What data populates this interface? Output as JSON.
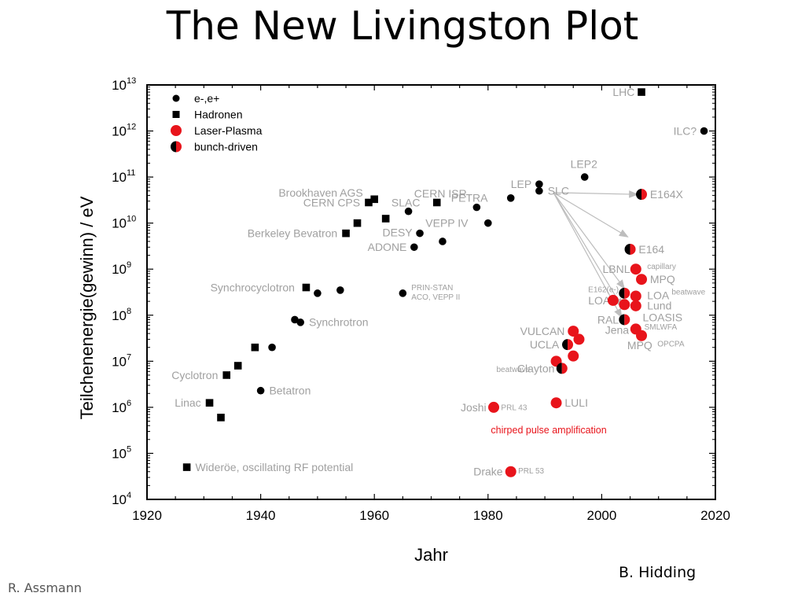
{
  "slide": {
    "title": "The New Livingston Plot",
    "credit_right": "B. Hidding",
    "credit_left": "R. Assmann"
  },
  "colors": {
    "axis": "#000000",
    "annotation_gray": "#a0a0a0",
    "laser_plasma": "#e8141b",
    "black_marker": "#000000",
    "arrow": "#bdbdbd",
    "cpa_text": "#e8141b"
  },
  "chart_data": {
    "type": "scatter",
    "xlabel": "Jahr",
    "ylabel": "Teilchenenergie(gewinn) / eV",
    "xlim": [
      1920,
      2020
    ],
    "ylim_log10": [
      4,
      13
    ],
    "yscale": "log",
    "x_ticks": [
      "1920",
      "1940",
      "1960",
      "1980",
      "2000",
      "2020"
    ],
    "y_tick_exponents": [
      "4",
      "5",
      "6",
      "7",
      "8",
      "9",
      "10",
      "11",
      "12",
      "13"
    ],
    "y_tick_base": "10",
    "legend": {
      "placement": "top-left",
      "entries": [
        {
          "label": "e-,e+",
          "marker": "circle"
        },
        {
          "label": "Hadronen",
          "marker": "square"
        },
        {
          "label": "Laser-Plasma",
          "marker": "red-circle"
        },
        {
          "label": "bunch-driven",
          "marker": "half-circle"
        }
      ]
    },
    "series": [
      {
        "name": "e-,e+",
        "marker": "circle",
        "points": [
          [
            1940,
            2300000.0
          ],
          [
            1942,
            20000000.0
          ],
          [
            1946,
            80000000.0
          ],
          [
            1947,
            70000000.0
          ],
          [
            1950,
            300000000.0
          ],
          [
            1954,
            350000000.0
          ],
          [
            1965,
            300000000.0
          ],
          [
            1966,
            18000000000.0
          ],
          [
            1967,
            3000000000.0
          ],
          [
            1968,
            6000000000.0
          ],
          [
            1972,
            4000000000.0
          ],
          [
            1978,
            22000000000.0
          ],
          [
            1980,
            10000000000.0
          ],
          [
            1984,
            35000000000.0
          ],
          [
            1989,
            70000000000.0
          ],
          [
            1989,
            50000000000.0
          ],
          [
            1997,
            100000000000.0
          ],
          [
            2018,
            1000000000000.0
          ]
        ]
      },
      {
        "name": "Hadronen",
        "marker": "square",
        "points": [
          [
            1927,
            50000.0
          ],
          [
            1931,
            1250000.0
          ],
          [
            1933,
            600000.0
          ],
          [
            1934,
            5000000.0
          ],
          [
            1936,
            8000000.0
          ],
          [
            1939,
            20000000.0
          ],
          [
            1948,
            400000000.0
          ],
          [
            1955,
            6000000000.0
          ],
          [
            1957,
            10000000000.0
          ],
          [
            1959,
            28000000000.0
          ],
          [
            1960,
            33000000000.0
          ],
          [
            1962,
            12500000000.0
          ],
          [
            1971,
            28000000000.0
          ],
          [
            2007,
            7000000000000.0
          ]
        ]
      },
      {
        "name": "Laser-Plasma",
        "marker": "red-circle",
        "points": [
          [
            1981,
            1000000.0
          ],
          [
            1984,
            40000.0
          ],
          [
            1992,
            1250000.0
          ],
          [
            1992,
            10000000.0
          ],
          [
            1995,
            13000000.0
          ],
          [
            1995,
            45000000.0
          ],
          [
            1996,
            30000000.0
          ],
          [
            2002,
            210000000.0
          ],
          [
            2004,
            170000000.0
          ],
          [
            2006,
            1000000000.0
          ],
          [
            2007,
            600000000.0
          ],
          [
            2006,
            260000000.0
          ],
          [
            2006,
            160000000.0
          ],
          [
            2006,
            50000000.0
          ],
          [
            2007,
            36000000.0
          ]
        ]
      },
      {
        "name": "bunch-driven",
        "marker": "half-circle",
        "points": [
          [
            1993,
            7000000.0
          ],
          [
            1994,
            23000000.0
          ],
          [
            2004,
            300000000.0
          ],
          [
            2004,
            80000000.0
          ],
          [
            2005,
            2700000000.0
          ],
          [
            2007,
            42000000000.0
          ]
        ]
      }
    ],
    "annotations": [
      {
        "text": "Wideröe, oscillating RF potential",
        "x": 1928.5,
        "y": 50000.0,
        "anchor": "start"
      },
      {
        "text": "Linac",
        "x": 1929.5,
        "y": 1250000.0,
        "anchor": "end"
      },
      {
        "text": "Cyclotron",
        "x": 1932.5,
        "y": 5000000.0,
        "anchor": "end"
      },
      {
        "text": "Betatron",
        "x": 1941.5,
        "y": 2300000.0,
        "anchor": "start"
      },
      {
        "text": "Synchrotron",
        "x": 1948.5,
        "y": 70000000.0,
        "anchor": "start"
      },
      {
        "text": "Synchrocyclotron",
        "x": 1946,
        "y": 400000000.0,
        "anchor": "end"
      },
      {
        "text": "Berkeley Bevatron",
        "x": 1953.5,
        "y": 6000000000.0,
        "anchor": "end"
      },
      {
        "text": "CERN CPS",
        "x": 1957.5,
        "y": 28000000000.0,
        "anchor": "end"
      },
      {
        "text": "Brookhaven AGS",
        "x": 1958,
        "y": 46000000000.0,
        "anchor": "end"
      },
      {
        "text": "CERN ISR",
        "x": 1967,
        "y": 44000000000.0,
        "anchor": "start"
      },
      {
        "text": "SLAC",
        "x": 1963,
        "y": 28000000000.0,
        "anchor": "start"
      },
      {
        "text": "DESY",
        "x": 1966.7,
        "y": 6300000000.0,
        "anchor": "end"
      },
      {
        "text": "ADONE",
        "x": 1965.7,
        "y": 3000000000.0,
        "anchor": "end"
      },
      {
        "text": "VEPP IV",
        "x": 1969,
        "y": 10000000000.0,
        "anchor": "start"
      },
      {
        "text": "PETRA",
        "x": 1973.5,
        "y": 35000000000.0,
        "anchor": "start"
      },
      {
        "text": "LEP",
        "x": 1984,
        "y": 70000000000.0,
        "anchor": "start"
      },
      {
        "text": "SLC",
        "x": 1990.5,
        "y": 50000000000.0,
        "anchor": "start"
      },
      {
        "text": "LEP2",
        "x": 1994.5,
        "y": 190000000000.0,
        "anchor": "start"
      },
      {
        "text": "LHC",
        "x": 2005.8,
        "y": 7000000000000.0,
        "anchor": "end"
      },
      {
        "text": "ILC?",
        "x": 2016.7,
        "y": 1000000000000.0,
        "anchor": "end"
      },
      {
        "text": "PRIN-STAN",
        "x": 1966.5,
        "y": 400000000.0,
        "anchor": "start",
        "size": "small"
      },
      {
        "text": "ACO, VEPP II",
        "x": 1966.5,
        "y": 250000000.0,
        "anchor": "start",
        "size": "small"
      },
      {
        "text": "E164X",
        "x": 2008.5,
        "y": 42000000000.0,
        "anchor": "start"
      },
      {
        "text": "E164",
        "x": 2006.5,
        "y": 2700000000.0,
        "anchor": "start"
      },
      {
        "text": "LBNL",
        "x": 2005,
        "y": 1000000000.0,
        "anchor": "end"
      },
      {
        "text": "capillary",
        "x": 2008,
        "y": 1150000000.0,
        "anchor": "start",
        "size": "small"
      },
      {
        "text": "MPQ",
        "x": 2008.5,
        "y": 600000000.0,
        "anchor": "start"
      },
      {
        "text": "E162(e-)",
        "x": 2003,
        "y": 360000000.0,
        "anchor": "end",
        "size": "small"
      },
      {
        "text": "LOA",
        "x": 2008,
        "y": 270000000.0,
        "anchor": "start"
      },
      {
        "text": "beatwave",
        "x": 2012.3,
        "y": 320000000.0,
        "anchor": "start",
        "size": "small"
      },
      {
        "text": "LOA",
        "x": 2001.5,
        "y": 210000000.0,
        "anchor": "end"
      },
      {
        "text": "Lund",
        "x": 2008,
        "y": 160000000.0,
        "anchor": "start"
      },
      {
        "text": "RAL",
        "x": 2003,
        "y": 80000000.0,
        "anchor": "end"
      },
      {
        "text": "LOASIS",
        "x": 2007.2,
        "y": 90000000.0,
        "anchor": "start"
      },
      {
        "text": "Jena",
        "x": 2004.8,
        "y": 48000000.0,
        "anchor": "end"
      },
      {
        "text": "SMLWFA",
        "x": 2007.5,
        "y": 56000000.0,
        "anchor": "start",
        "size": "small"
      },
      {
        "text": "MPQ",
        "x": 2004.5,
        "y": 22000000.0,
        "anchor": "start"
      },
      {
        "text": "OPCPA",
        "x": 2009.8,
        "y": 24000000.0,
        "anchor": "start",
        "size": "small"
      },
      {
        "text": "VULCAN",
        "x": 1993.5,
        "y": 45000000.0,
        "anchor": "end"
      },
      {
        "text": "UCLA",
        "x": 1992.5,
        "y": 23000000.0,
        "anchor": "end"
      },
      {
        "text": "Clayton",
        "x": 1991.7,
        "y": 7000000.0,
        "anchor": "end"
      },
      {
        "text": "beatwave",
        "x": 1987.4,
        "y": 6700000.0,
        "anchor": "end",
        "size": "small"
      },
      {
        "text": "LULI",
        "x": 1993.5,
        "y": 1250000.0,
        "anchor": "start"
      },
      {
        "text": "Joshi",
        "x": 1979.7,
        "y": 1000000.0,
        "anchor": "end"
      },
      {
        "text": "PRL 43",
        "x": 1982.3,
        "y": 1000000.0,
        "anchor": "start",
        "size": "small"
      },
      {
        "text": "Drake",
        "x": 1982.6,
        "y": 40000.0,
        "anchor": "end"
      },
      {
        "text": "PRL 53",
        "x": 1985.3,
        "y": 42000.0,
        "anchor": "start",
        "size": "small"
      },
      {
        "text": "chirped pulse amplification",
        "x": 1980.5,
        "y": 320000.0,
        "anchor": "start",
        "size": "cpa",
        "color": "red"
      }
    ],
    "arrows": [
      {
        "from": [
          1991.5,
          46000000000.0
        ],
        "to": [
          2006.3,
          42000000000.0
        ]
      },
      {
        "from": [
          1991.5,
          46000000000.0
        ],
        "to": [
          2004.6,
          5000000000.0
        ]
      },
      {
        "from": [
          1991.5,
          46000000000.0
        ],
        "to": [
          2004,
          380000000.0
        ]
      },
      {
        "from": [
          1991.5,
          46000000000.0
        ],
        "to": [
          2003.6,
          150000000.0
        ]
      },
      {
        "from": [
          1991.5,
          46000000000.0
        ],
        "to": [
          2003.5,
          90000000.0
        ]
      }
    ]
  }
}
